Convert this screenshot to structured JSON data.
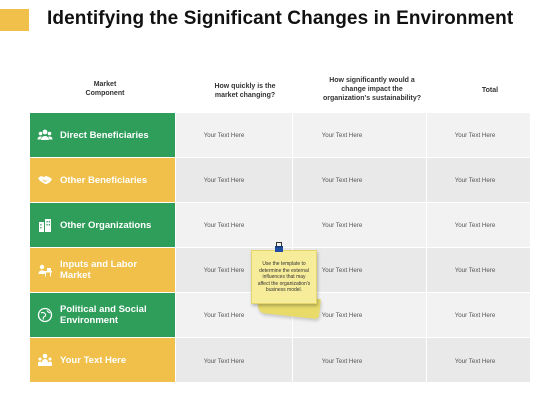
{
  "page": {
    "title": "Identifying the Significant Changes in Environment",
    "accent_yellow": "#f1c04a",
    "accent_green": "#2f9e5b"
  },
  "table": {
    "headers": [
      "Market\nComponent",
      "How quickly is the\nmarket changing?",
      "How significantly would a\nchange impact the\norganization's sustainability?",
      "Total"
    ],
    "rows": [
      {
        "label": "Direct Beneficiaries",
        "icon": "people-group-icon",
        "color": "green",
        "cells": [
          "Your Text Here",
          "Your Text Here",
          "Your Text Here"
        ]
      },
      {
        "label": "Other Beneficiaries",
        "icon": "handshake-icon",
        "color": "yellow",
        "cells": [
          "Your Text Here",
          "Your Text Here",
          "Your Text Here"
        ]
      },
      {
        "label": "Other Organizations",
        "icon": "buildings-icon",
        "color": "green",
        "cells": [
          "Your Text Here",
          "Your Text Here",
          "Your Text Here"
        ]
      },
      {
        "label": "Inputs and Labor\nMarket",
        "icon": "worker-desk-icon",
        "color": "yellow",
        "cells": [
          "Your Text Here",
          "Your Text Here",
          "Your Text Here"
        ]
      },
      {
        "label": "Political and Social\nEnvironment",
        "icon": "globe-icon",
        "color": "green",
        "cells": [
          "Your Text Here",
          "Your Text Here",
          "Your Text Here"
        ]
      },
      {
        "label": "Your Text Here",
        "icon": "people-icon",
        "color": "yellow",
        "cells": [
          "Your Text Here",
          "Your Text Here",
          "Your Text Here"
        ]
      }
    ]
  },
  "sticky_note": {
    "text": "Use the template to determine the external influences that may affect the organization's business model.",
    "icon": "binder-clip-icon"
  }
}
